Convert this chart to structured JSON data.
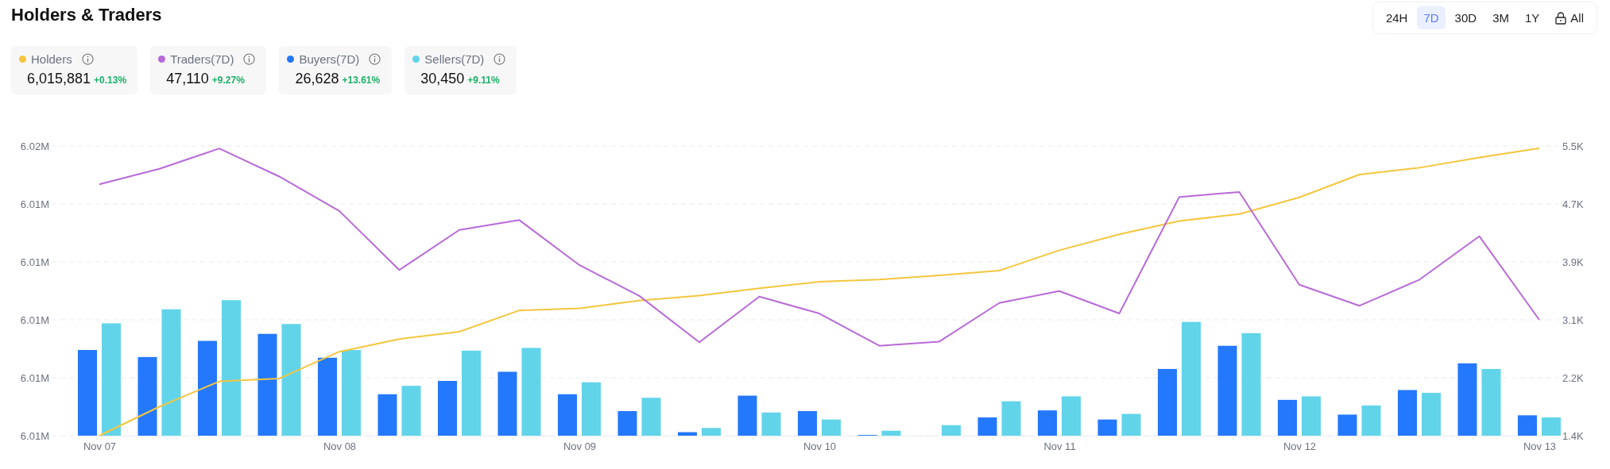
{
  "chart_data": {
    "type": "bar",
    "title": "Holders & Traders",
    "categories": [
      "Nov 07",
      null,
      null,
      null,
      "Nov 08",
      null,
      null,
      null,
      "Nov 09",
      null,
      null,
      null,
      "Nov 10",
      null,
      null,
      null,
      "Nov 11",
      null,
      null,
      null,
      "Nov 12",
      null,
      null,
      null,
      "Nov 13"
    ],
    "series": [
      {
        "name": "Holders",
        "type": "line",
        "color": "#f4c63d",
        "values": [
          6008000,
          6008800,
          6009500,
          6009580,
          6010320,
          6010670,
          6010870,
          6011460,
          6011520,
          6011730,
          6011870,
          6012070,
          6012250,
          6012310,
          6012430,
          6012560,
          6013120,
          6013560,
          6013930,
          6014120,
          6014580,
          6015210,
          6015400,
          6015680,
          6015940
        ]
      },
      {
        "name": "Traders(7D)",
        "type": "line",
        "axis": "y2",
        "color": "#b86ad8",
        "values": [
          4980,
          5200,
          5490,
          5090,
          4600,
          3760,
          4330,
          4470,
          3830,
          3390,
          2730,
          3380,
          3140,
          2680,
          2740,
          3290,
          3460,
          3140,
          4800,
          4870,
          3550,
          3250,
          3620,
          4240,
          3050
        ]
      },
      {
        "name": "Buyers(7D)",
        "axis": "y2",
        "color": "#2478fb",
        "values": [
          2620,
          2520,
          2750,
          2850,
          2510,
          1990,
          2180,
          2310,
          1990,
          1750,
          1450,
          1970,
          1750,
          1410,
          1400,
          1660,
          1760,
          1630,
          2350,
          2680,
          1910,
          1700,
          2050,
          2430,
          1690
        ]
      },
      {
        "name": "Sellers(7D)",
        "axis": "y2",
        "color": "#62d4ea",
        "values": [
          3000,
          3200,
          3330,
          2990,
          2620,
          2110,
          2610,
          2650,
          2160,
          1940,
          1510,
          1730,
          1630,
          1470,
          1550,
          1890,
          1960,
          1710,
          3020,
          2860,
          1960,
          1830,
          2010,
          2350,
          1660
        ]
      }
    ],
    "ylim": [
      6008000,
      6016000
    ],
    "yticks": [
      {
        "value": 6008000,
        "label": "6.01M"
      },
      {
        "value": 6009600,
        "label": "6.01M"
      },
      {
        "value": 6011200,
        "label": "6.01M"
      },
      {
        "value": 6012800,
        "label": "6.01M"
      },
      {
        "value": 6014400,
        "label": "6.01M"
      },
      {
        "value": 6016000,
        "label": "6.02M"
      }
    ],
    "y2lim": [
      1400,
      5525
    ],
    "y2ticks": [
      {
        "value": 1400,
        "label": "1.4K"
      },
      {
        "value": 2225,
        "label": "2.2K"
      },
      {
        "value": 3050,
        "label": "3.1K"
      },
      {
        "value": 3875,
        "label": "3.9K"
      },
      {
        "value": 4700,
        "label": "4.7K"
      },
      {
        "value": 5525,
        "label": "5.5K"
      }
    ],
    "grid": "y",
    "legend": "top left",
    "annotations": [
      "6,015,881",
      "+0.13%",
      "47,110",
      "+9.27%",
      "26,628",
      "+13.61%",
      "30,450",
      "+9.11%",
      "24H",
      "7D",
      "30D",
      "3M",
      "1Y",
      "All"
    ]
  }
}
